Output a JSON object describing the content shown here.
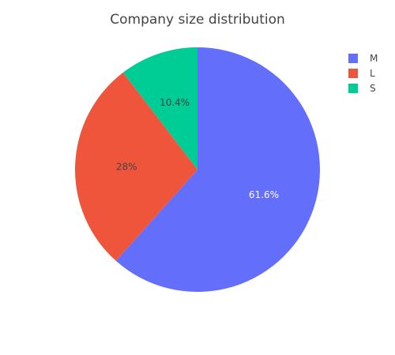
{
  "chart_data": {
    "type": "pie",
    "title": "Company size distribution",
    "slices": [
      {
        "label": "M",
        "value": 61.6,
        "display": "61.6%",
        "color": "#636efa",
        "text_color": "#ffffff"
      },
      {
        "label": "L",
        "value": 28.0,
        "display": "28%",
        "color": "#ef553b",
        "text_color": "#444444"
      },
      {
        "label": "S",
        "value": 10.4,
        "display": "10.4%",
        "color": "#00cc96",
        "text_color": "#444444"
      }
    ],
    "legend": {
      "placement": "top-right",
      "items": [
        "M",
        "L",
        "S"
      ]
    },
    "direction": "clockwise",
    "start": "top"
  }
}
